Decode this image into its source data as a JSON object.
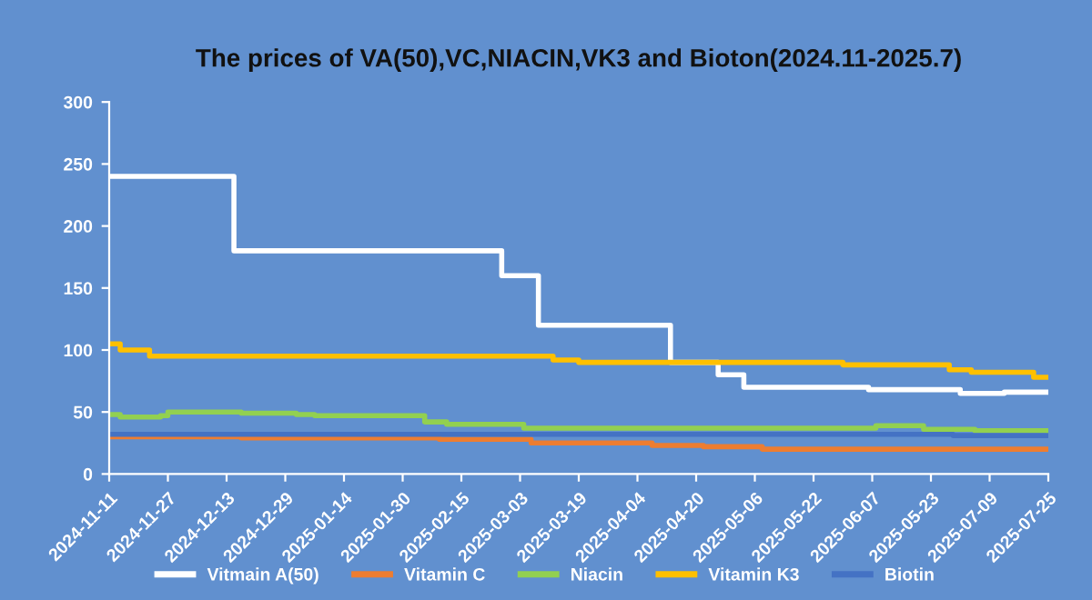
{
  "chart_data": {
    "type": "step",
    "title": "The prices of VA(50),VC,NIACIN,VK3 and Bioton(2024.11-2025.7)",
    "ylim": [
      0,
      300
    ],
    "yticks": [
      0,
      50,
      100,
      150,
      200,
      250,
      300
    ],
    "xlim": [
      "2024-11-11",
      "2025-07-25"
    ],
    "xticks": [
      {
        "value": "2024-11-11",
        "label": "2024-11-11"
      },
      {
        "value": "2024-11-27",
        "label": "2024-11-27"
      },
      {
        "value": "2024-12-13",
        "label": "2024-12-13"
      },
      {
        "value": "2024-12-29",
        "label": "2024-12-29"
      },
      {
        "value": "2025-01-14",
        "label": "2025-01-14"
      },
      {
        "value": "2025-01-30",
        "label": "2025-01-30"
      },
      {
        "value": "2025-02-15",
        "label": "2025-02-15"
      },
      {
        "value": "2025-03-03",
        "label": "2025-03-03"
      },
      {
        "value": "2025-03-19",
        "label": "2025-03-19"
      },
      {
        "value": "2025-04-04",
        "label": "2025-04-04"
      },
      {
        "value": "2025-04-20",
        "label": "2025-04-20"
      },
      {
        "value": "2025-05-06",
        "label": "2025-05-06"
      },
      {
        "value": "2025-05-22",
        "label": "2025-05-22"
      },
      {
        "value": "2025-06-07",
        "label": "2025-06-07"
      },
      {
        "value": "2025-06-23",
        "label": "2025-05-23"
      },
      {
        "value": "2025-07-09",
        "label": "2025-07-09"
      },
      {
        "value": "2025-07-25",
        "label": "2025-07-25"
      }
    ],
    "grid": false,
    "legend": "bottom",
    "marker": "none",
    "line_style": "solid",
    "series": [
      {
        "name": "Vitmain A(50)",
        "color": "#ffffff",
        "x": [
          "2024-11-11",
          "2024-12-15",
          "2025-02-26",
          "2025-03-08",
          "2025-04-13",
          "2025-04-26",
          "2025-05-03",
          "2025-06-06",
          "2025-07-01",
          "2025-07-13",
          "2025-07-25"
        ],
        "values": [
          240,
          180,
          160,
          120,
          90,
          80,
          70,
          68,
          65,
          66,
          66
        ]
      },
      {
        "name": "Vitamin C",
        "color": "#ed7d31",
        "x": [
          "2024-11-11",
          "2024-12-17",
          "2025-02-09",
          "2025-03-06",
          "2025-04-08",
          "2025-04-22",
          "2025-05-08",
          "2025-07-25"
        ],
        "values": [
          30,
          29,
          28,
          25,
          23,
          22,
          20,
          20
        ]
      },
      {
        "name": "Niacin",
        "color": "#92d050",
        "x": [
          "2024-11-11",
          "2024-11-14",
          "2024-11-25",
          "2024-11-27",
          "2024-12-17",
          "2025-01-01",
          "2025-01-06",
          "2025-02-05",
          "2025-02-11",
          "2025-03-04",
          "2025-06-08",
          "2025-06-21",
          "2025-07-05",
          "2025-07-25"
        ],
        "values": [
          48,
          46,
          47,
          50,
          49,
          48,
          47,
          42,
          40,
          37,
          39,
          36,
          35,
          33
        ]
      },
      {
        "name": "Vitamin K3",
        "color": "#ffc000",
        "x": [
          "2024-11-11",
          "2024-11-14",
          "2024-11-22",
          "2025-03-12",
          "2025-03-19",
          "2025-05-30",
          "2025-06-28",
          "2025-07-04",
          "2025-07-21",
          "2025-07-25"
        ],
        "values": [
          105,
          100,
          95,
          92,
          90,
          88,
          84,
          82,
          78,
          78
        ]
      },
      {
        "name": "Biotin",
        "color": "#4472c4",
        "x": [
          "2024-11-11",
          "2025-06-29",
          "2025-07-25"
        ],
        "values": [
          32,
          31,
          31
        ]
      }
    ]
  }
}
